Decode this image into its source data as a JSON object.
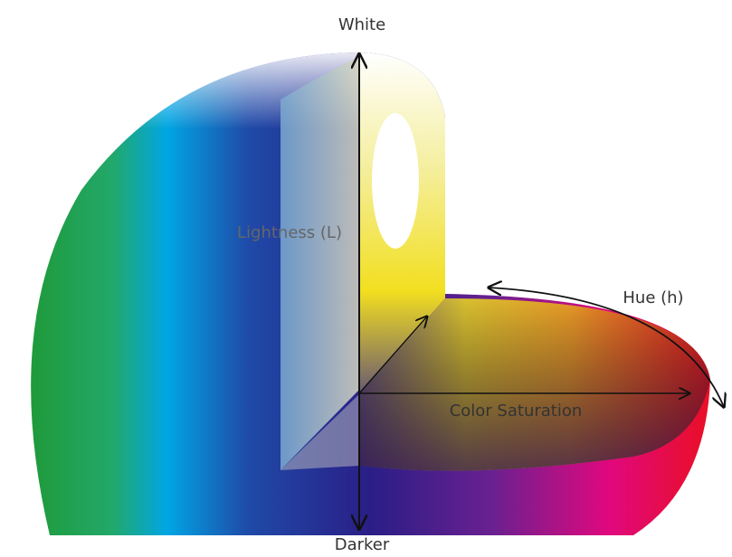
{
  "labels": {
    "white": "White",
    "lightness": "Lightness (L)",
    "hue": "Hue (h)",
    "saturation": "Color Saturation",
    "darker": "Darker"
  }
}
